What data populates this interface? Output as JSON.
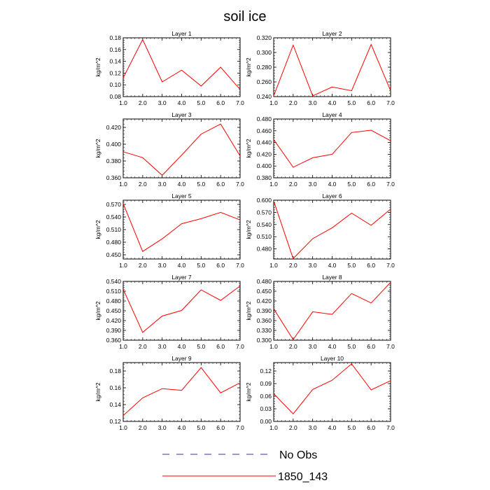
{
  "figure_title": "soil ice",
  "colors": {
    "model_line": "#ff0000",
    "obs_line": "#3333aa",
    "axis": "#000000"
  },
  "legend": {
    "entries": [
      {
        "label": "No Obs",
        "style": "dashed",
        "color": "#3333aa"
      },
      {
        "label": "1850_143",
        "style": "solid",
        "color": "#ff0000"
      }
    ]
  },
  "chart_data": [
    {
      "type": "line",
      "title": "Layer 1",
      "ylabel": "kg/m^2",
      "xlim": [
        1,
        7
      ],
      "ylim": [
        0.08,
        0.18
      ],
      "x_ticks": [
        "1.0",
        "2.0",
        "3.0",
        "4.0",
        "5.0",
        "6.0",
        "7.0"
      ],
      "y_ticks": [
        0.08,
        0.1,
        0.12,
        0.14,
        0.16,
        0.18
      ],
      "y_tick_labels": [
        "0.08",
        "0.10",
        "0.12",
        "0.14",
        "0.16",
        "0.18"
      ],
      "series": [
        {
          "name": "1850_143",
          "x": [
            1,
            2,
            3,
            4,
            5,
            6,
            7
          ],
          "values": [
            0.112,
            0.177,
            0.105,
            0.125,
            0.098,
            0.13,
            0.092
          ]
        }
      ]
    },
    {
      "type": "line",
      "title": "Layer 2",
      "ylabel": "kg/m^2",
      "xlim": [
        1,
        7
      ],
      "ylim": [
        0.24,
        0.32
      ],
      "x_ticks": [
        "1.0",
        "2.0",
        "3.0",
        "4.0",
        "5.0",
        "6.0",
        "7.0"
      ],
      "y_ticks": [
        0.24,
        0.26,
        0.28,
        0.3,
        0.32
      ],
      "y_tick_labels": [
        "0.240",
        "0.260",
        "0.280",
        "0.300",
        "0.320"
      ],
      "series": [
        {
          "name": "1850_143",
          "x": [
            1,
            2,
            3,
            4,
            5,
            6,
            7
          ],
          "values": [
            0.241,
            0.31,
            0.241,
            0.253,
            0.248,
            0.311,
            0.248
          ]
        }
      ]
    },
    {
      "type": "line",
      "title": "Layer 3",
      "ylabel": "kg/m^2",
      "xlim": [
        1,
        7
      ],
      "ylim": [
        0.36,
        0.43
      ],
      "x_ticks": [
        "1.0",
        "2.0",
        "3.0",
        "4.0",
        "5.0",
        "6.0",
        "7.0"
      ],
      "y_ticks": [
        0.36,
        0.38,
        0.4,
        0.42
      ],
      "y_tick_labels": [
        "0.360",
        "0.380",
        "0.400",
        "0.420"
      ],
      "series": [
        {
          "name": "1850_143",
          "x": [
            1,
            2,
            3,
            4,
            5,
            6,
            7
          ],
          "values": [
            0.391,
            0.384,
            0.363,
            0.387,
            0.412,
            0.424,
            0.386
          ]
        }
      ]
    },
    {
      "type": "line",
      "title": "Layer 4",
      "ylabel": "kg/m^2",
      "xlim": [
        1,
        7
      ],
      "ylim": [
        0.38,
        0.48
      ],
      "x_ticks": [
        "1.0",
        "2.0",
        "3.0",
        "4.0",
        "5.0",
        "6.0",
        "7.0"
      ],
      "y_ticks": [
        0.38,
        0.4,
        0.42,
        0.44,
        0.46,
        0.48
      ],
      "y_tick_labels": [
        "0.380",
        "0.400",
        "0.420",
        "0.440",
        "0.460",
        "0.480"
      ],
      "series": [
        {
          "name": "1850_143",
          "x": [
            1,
            2,
            3,
            4,
            5,
            6,
            7
          ],
          "values": [
            0.445,
            0.398,
            0.414,
            0.42,
            0.457,
            0.461,
            0.443
          ]
        }
      ]
    },
    {
      "type": "line",
      "title": "Layer 5",
      "ylabel": "kg/m^2",
      "xlim": [
        1,
        7
      ],
      "ylim": [
        0.44,
        0.58
      ],
      "x_ticks": [
        "1.0",
        "2.0",
        "3.0",
        "4.0",
        "5.0",
        "6.0",
        "7.0"
      ],
      "y_ticks": [
        0.45,
        0.48,
        0.51,
        0.54,
        0.57
      ],
      "y_tick_labels": [
        "0.450",
        "0.480",
        "0.510",
        "0.540",
        "0.570"
      ],
      "series": [
        {
          "name": "1850_143",
          "x": [
            1,
            2,
            3,
            4,
            5,
            6,
            7
          ],
          "values": [
            0.572,
            0.458,
            0.488,
            0.524,
            0.536,
            0.551,
            0.533
          ]
        }
      ]
    },
    {
      "type": "line",
      "title": "Layer 6",
      "ylabel": "kg/m^2",
      "xlim": [
        1,
        7
      ],
      "ylim": [
        0.455,
        0.6
      ],
      "x_ticks": [
        "1.0",
        "2.0",
        "3.0",
        "4.0",
        "5.0",
        "6.0",
        "7.0"
      ],
      "y_ticks": [
        0.48,
        0.51,
        0.54,
        0.57,
        0.6
      ],
      "y_tick_labels": [
        "0.480",
        "0.510",
        "0.540",
        "0.570",
        "0.600"
      ],
      "series": [
        {
          "name": "1850_143",
          "x": [
            1,
            2,
            3,
            4,
            5,
            6,
            7
          ],
          "values": [
            0.598,
            0.456,
            0.505,
            0.532,
            0.568,
            0.538,
            0.578
          ]
        }
      ]
    },
    {
      "type": "line",
      "title": "Layer 7",
      "ylabel": "kg/m^2",
      "xlim": [
        1,
        7
      ],
      "ylim": [
        0.36,
        0.54
      ],
      "x_ticks": [
        "1.0",
        "2.0",
        "3.0",
        "4.0",
        "5.0",
        "6.0",
        "7.0"
      ],
      "y_ticks": [
        0.36,
        0.39,
        0.42,
        0.45,
        0.48,
        0.51,
        0.54
      ],
      "y_tick_labels": [
        "0.360",
        "0.390",
        "0.420",
        "0.450",
        "0.480",
        "0.510",
        "0.540"
      ],
      "series": [
        {
          "name": "1850_143",
          "x": [
            1,
            2,
            3,
            4,
            5,
            6,
            7
          ],
          "values": [
            0.516,
            0.384,
            0.434,
            0.451,
            0.514,
            0.482,
            0.526
          ]
        }
      ]
    },
    {
      "type": "line",
      "title": "Layer 8",
      "ylabel": "kg/m^2",
      "xlim": [
        1,
        7
      ],
      "ylim": [
        0.3,
        0.48
      ],
      "x_ticks": [
        "1.0",
        "2.0",
        "3.0",
        "4.0",
        "5.0",
        "6.0",
        "7.0"
      ],
      "y_ticks": [
        0.3,
        0.33,
        0.36,
        0.39,
        0.42,
        0.45,
        0.48
      ],
      "y_tick_labels": [
        "0.300",
        "0.330",
        "0.360",
        "0.390",
        "0.420",
        "0.450",
        "0.480"
      ],
      "series": [
        {
          "name": "1850_143",
          "x": [
            1,
            2,
            3,
            4,
            5,
            6,
            7
          ],
          "values": [
            0.396,
            0.302,
            0.387,
            0.379,
            0.443,
            0.414,
            0.477
          ]
        }
      ]
    },
    {
      "type": "line",
      "title": "Layer 9",
      "ylabel": "kg/m^2",
      "xlim": [
        1,
        7
      ],
      "ylim": [
        0.12,
        0.19
      ],
      "x_ticks": [
        "1.0",
        "2.0",
        "3.0",
        "4.0",
        "5.0",
        "6.0",
        "7.0"
      ],
      "y_ticks": [
        0.12,
        0.14,
        0.16,
        0.18
      ],
      "y_tick_labels": [
        "0.12",
        "0.14",
        "0.16",
        "0.18"
      ],
      "series": [
        {
          "name": "1850_143",
          "x": [
            1,
            2,
            3,
            4,
            5,
            6,
            7
          ],
          "values": [
            0.127,
            0.148,
            0.159,
            0.157,
            0.184,
            0.154,
            0.166
          ]
        }
      ]
    },
    {
      "type": "line",
      "title": "Layer 10",
      "ylabel": "kg/m^2",
      "xlim": [
        1,
        7
      ],
      "ylim": [
        0.0,
        0.14
      ],
      "x_ticks": [
        "1.0",
        "2.0",
        "3.0",
        "4.0",
        "5.0",
        "6.0",
        "7.0"
      ],
      "y_ticks": [
        0.0,
        0.03,
        0.06,
        0.09,
        0.12
      ],
      "y_tick_labels": [
        "0.00",
        "0.03",
        "0.06",
        "0.09",
        "0.12"
      ],
      "series": [
        {
          "name": "1850_143",
          "x": [
            1,
            2,
            3,
            4,
            5,
            6,
            7
          ],
          "values": [
            0.066,
            0.018,
            0.076,
            0.098,
            0.137,
            0.075,
            0.097
          ]
        }
      ]
    }
  ]
}
